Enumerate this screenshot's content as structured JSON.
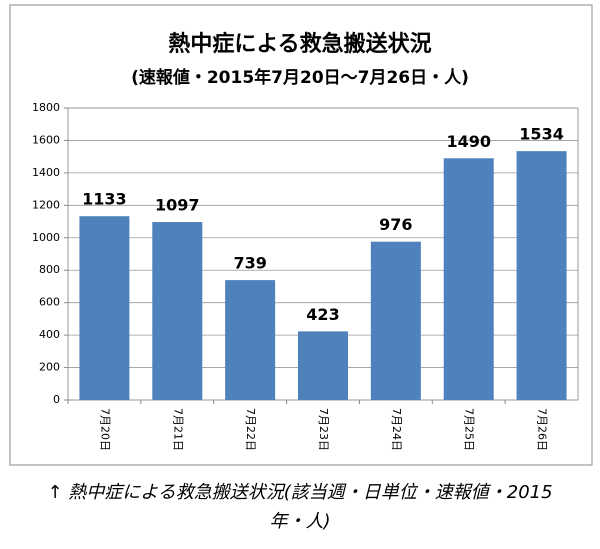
{
  "chart_data": {
    "type": "bar",
    "title": "熱中症による救急搬送状況",
    "subtitle": "(速報値・2015年7月20日～7月26日・人)",
    "categories": [
      "7月20日",
      "7月21日",
      "7月22日",
      "7月23日",
      "7月24日",
      "7月25日",
      "7月26日"
    ],
    "values": [
      1133,
      1097,
      739,
      423,
      976,
      1490,
      1534
    ],
    "color": "#4f81bd",
    "ylim": [
      0,
      1800
    ],
    "yticks": [
      0,
      200,
      400,
      600,
      800,
      1000,
      1200,
      1400,
      1600,
      1800
    ],
    "grid": true
  },
  "caption": "↑ 熱中症による救急搬送状況(該当週・日単位・速報値・2015年・人)"
}
